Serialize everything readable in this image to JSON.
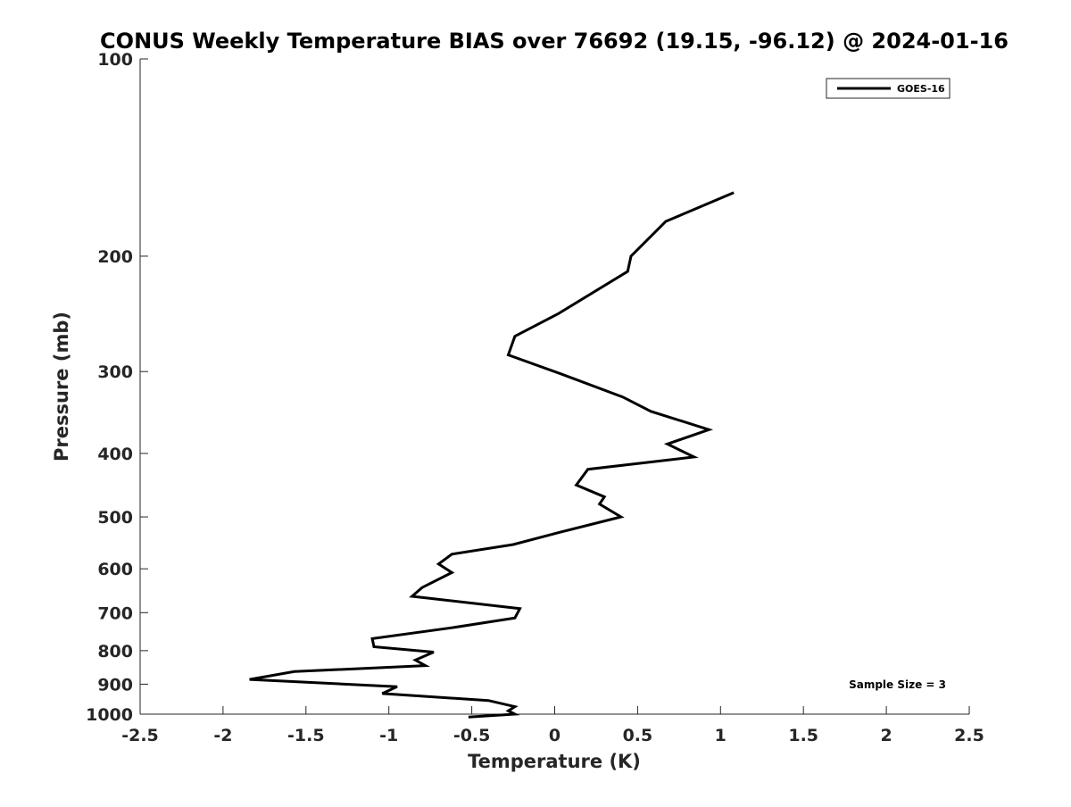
{
  "chart_data": {
    "type": "line",
    "title": "CONUS Weekly Temperature BIAS over 76692 (19.15, -96.12) @ 2024-01-16",
    "xlabel": "Temperature (K)",
    "ylabel": "Pressure (mb)",
    "xlim": [
      -2.5,
      2.5
    ],
    "ylim": [
      100,
      1000
    ],
    "y_scale": "log",
    "y_reversed": true,
    "grid": false,
    "legend_position": "top-right",
    "x_ticks": [
      -2.5,
      -2,
      -1.5,
      -1,
      -0.5,
      0,
      0.5,
      1,
      1.5,
      2,
      2.5
    ],
    "x_tick_labels": [
      "-2.5",
      "-2",
      "-1.5",
      "-1",
      "-0.5",
      "0",
      "0.5",
      "1",
      "1.5",
      "2",
      "2.5"
    ],
    "y_ticks": [
      100,
      200,
      300,
      400,
      500,
      600,
      700,
      800,
      900,
      1000
    ],
    "y_tick_labels": [
      "100",
      "200",
      "300",
      "400",
      "500",
      "600",
      "700",
      "800",
      "900",
      "1000"
    ],
    "annotation": "Sample Size = 3",
    "series": [
      {
        "name": "GOES-16",
        "color": "#000000",
        "x": [
          1.08,
          0.67,
          0.46,
          0.44,
          0.02,
          -0.24,
          -0.28,
          0.03,
          0.41,
          0.58,
          0.93,
          0.68,
          0.84,
          0.2,
          0.13,
          0.3,
          0.27,
          0.4,
          0.04,
          -0.25,
          -0.62,
          -0.7,
          -0.62,
          -0.8,
          -0.86,
          -0.21,
          -0.24,
          -0.62,
          -1.1,
          -1.09,
          -0.73,
          -0.84,
          -0.78,
          -1.57,
          -1.84,
          -0.95,
          -1.04,
          -0.4,
          -0.24,
          -0.28,
          -0.24,
          -0.52
        ],
        "y": [
          160,
          177,
          200,
          211,
          245,
          265,
          283,
          302,
          328,
          345,
          368,
          387,
          405,
          423,
          447,
          466,
          478,
          500,
          527,
          551,
          570,
          590,
          608,
          641,
          661,
          690,
          713,
          738,
          767,
          789,
          804,
          827,
          843,
          861,
          885,
          908,
          930,
          953,
          974,
          988,
          1000,
          1010
        ]
      }
    ]
  }
}
